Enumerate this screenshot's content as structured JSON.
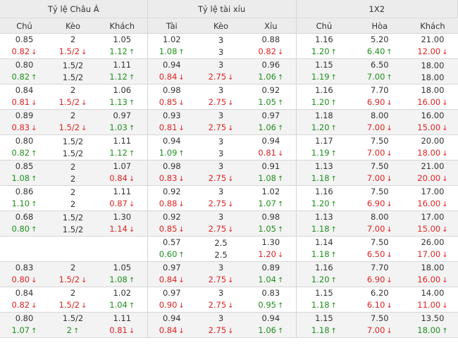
{
  "groups": [
    "Tỷ lệ Châu Á",
    "Tỷ lệ tài xỉu",
    "1X2"
  ],
  "columns": [
    "Chủ",
    "Kèo",
    "Khách",
    "Tài",
    "Kèo",
    "Xỉu",
    "Chủ",
    "Hòa",
    "Khách"
  ],
  "rows": [
    [
      [
        "0.85",
        ""
      ],
      [
        "0.82",
        "down"
      ],
      [
        "2",
        ""
      ],
      [
        "1.5/2",
        "down"
      ],
      [
        "1.05",
        ""
      ],
      [
        "1.12",
        "up"
      ],
      [
        "1.02",
        ""
      ],
      [
        "1.08",
        "up"
      ],
      [
        "3",
        ""
      ],
      [
        "3",
        ""
      ],
      [
        "0.88",
        ""
      ],
      [
        "0.82",
        "down"
      ],
      [
        "1.16",
        ""
      ],
      [
        "1.20",
        "up"
      ],
      [
        "5.20",
        ""
      ],
      [
        "6.40",
        "up"
      ],
      [
        "21.00",
        ""
      ],
      [
        "12.00",
        "down"
      ]
    ],
    [
      [
        "0.80",
        ""
      ],
      [
        "0.82",
        "up"
      ],
      [
        "1.5/2",
        ""
      ],
      [
        "1.5/2",
        ""
      ],
      [
        "1.11",
        ""
      ],
      [
        "1.12",
        "up"
      ],
      [
        "0.94",
        ""
      ],
      [
        "0.84",
        "down"
      ],
      [
        "3",
        ""
      ],
      [
        "2.75",
        "down"
      ],
      [
        "0.96",
        ""
      ],
      [
        "1.06",
        "up"
      ],
      [
        "1.15",
        ""
      ],
      [
        "1.19",
        "up"
      ],
      [
        "6.50",
        ""
      ],
      [
        "7.00",
        "up"
      ],
      [
        "18.00",
        ""
      ],
      [
        "18.00",
        ""
      ]
    ],
    [
      [
        "0.84",
        ""
      ],
      [
        "0.81",
        "down"
      ],
      [
        "2",
        ""
      ],
      [
        "1.5/2",
        "down"
      ],
      [
        "1.06",
        ""
      ],
      [
        "1.13",
        "up"
      ],
      [
        "0.98",
        ""
      ],
      [
        "0.85",
        "down"
      ],
      [
        "3",
        ""
      ],
      [
        "2.75",
        "down"
      ],
      [
        "0.92",
        ""
      ],
      [
        "1.05",
        "up"
      ],
      [
        "1.16",
        ""
      ],
      [
        "1.20",
        "up"
      ],
      [
        "7.70",
        ""
      ],
      [
        "6.90",
        "down"
      ],
      [
        "18.00",
        ""
      ],
      [
        "16.00",
        "down"
      ]
    ],
    [
      [
        "0.89",
        ""
      ],
      [
        "0.83",
        "down"
      ],
      [
        "2",
        ""
      ],
      [
        "1.5/2",
        "down"
      ],
      [
        "0.97",
        ""
      ],
      [
        "1.03",
        "up"
      ],
      [
        "0.93",
        ""
      ],
      [
        "0.81",
        "down"
      ],
      [
        "3",
        ""
      ],
      [
        "2.75",
        "down"
      ],
      [
        "0.97",
        ""
      ],
      [
        "1.06",
        "up"
      ],
      [
        "1.18",
        ""
      ],
      [
        "1.20",
        "up"
      ],
      [
        "8.00",
        ""
      ],
      [
        "7.00",
        "down"
      ],
      [
        "16.00",
        ""
      ],
      [
        "15.00",
        "down"
      ]
    ],
    [
      [
        "0.80",
        ""
      ],
      [
        "0.82",
        "up"
      ],
      [
        "1.5/2",
        ""
      ],
      [
        "1.5/2",
        ""
      ],
      [
        "1.11",
        ""
      ],
      [
        "1.12",
        "up"
      ],
      [
        "0.94",
        ""
      ],
      [
        "1.09",
        "up"
      ],
      [
        "3",
        ""
      ],
      [
        "3",
        ""
      ],
      [
        "0.94",
        ""
      ],
      [
        "0.81",
        "down"
      ],
      [
        "1.17",
        ""
      ],
      [
        "1.19",
        "up"
      ],
      [
        "7.50",
        ""
      ],
      [
        "7.00",
        "down"
      ],
      [
        "20.00",
        ""
      ],
      [
        "18.00",
        "down"
      ]
    ],
    [
      [
        "0.85",
        ""
      ],
      [
        "1.08",
        "up"
      ],
      [
        "2",
        ""
      ],
      [
        "2",
        ""
      ],
      [
        "1.07",
        ""
      ],
      [
        "0.84",
        "down"
      ],
      [
        "0.98",
        ""
      ],
      [
        "0.83",
        "down"
      ],
      [
        "3",
        ""
      ],
      [
        "2.75",
        "down"
      ],
      [
        "0.91",
        ""
      ],
      [
        "1.08",
        "up"
      ],
      [
        "1.13",
        ""
      ],
      [
        "1.18",
        "up"
      ],
      [
        "7.50",
        ""
      ],
      [
        "7.00",
        "down"
      ],
      [
        "21.00",
        ""
      ],
      [
        "20.00",
        "down"
      ]
    ],
    [
      [
        "0.86",
        ""
      ],
      [
        "1.10",
        "up"
      ],
      [
        "2",
        ""
      ],
      [
        "2",
        ""
      ],
      [
        "1.11",
        ""
      ],
      [
        "0.87",
        "down"
      ],
      [
        "0.92",
        ""
      ],
      [
        "0.88",
        "down"
      ],
      [
        "3",
        ""
      ],
      [
        "2.75",
        "down"
      ],
      [
        "1.02",
        ""
      ],
      [
        "1.07",
        "up"
      ],
      [
        "1.16",
        ""
      ],
      [
        "1.20",
        "up"
      ],
      [
        "7.50",
        ""
      ],
      [
        "6.90",
        "down"
      ],
      [
        "17.00",
        ""
      ],
      [
        "16.00",
        "down"
      ]
    ],
    [
      [
        "0.68",
        ""
      ],
      [
        "0.80",
        "up"
      ],
      [
        "1.5/2",
        ""
      ],
      [
        "1.5/2",
        ""
      ],
      [
        "1.30",
        ""
      ],
      [
        "1.14",
        "down"
      ],
      [
        "0.92",
        ""
      ],
      [
        "0.85",
        "down"
      ],
      [
        "3",
        ""
      ],
      [
        "2.75",
        "down"
      ],
      [
        "0.98",
        ""
      ],
      [
        "1.05",
        "up"
      ],
      [
        "1.13",
        ""
      ],
      [
        "1.18",
        "up"
      ],
      [
        "8.00",
        ""
      ],
      [
        "7.00",
        "down"
      ],
      [
        "17.00",
        ""
      ],
      [
        "15.00",
        "down"
      ]
    ],
    [
      [
        "",
        ""
      ],
      [
        "",
        ""
      ],
      [
        "",
        ""
      ],
      [
        "",
        ""
      ],
      [
        "",
        ""
      ],
      [
        "",
        ""
      ],
      [
        "0.57",
        ""
      ],
      [
        "0.60",
        "up"
      ],
      [
        "2.5",
        ""
      ],
      [
        "2.5",
        ""
      ],
      [
        "1.30",
        ""
      ],
      [
        "1.20",
        "down"
      ],
      [
        "1.14",
        ""
      ],
      [
        "1.18",
        "up"
      ],
      [
        "7.50",
        ""
      ],
      [
        "6.50",
        "down"
      ],
      [
        "26.00",
        ""
      ],
      [
        "17.00",
        "down"
      ]
    ],
    [
      [
        "0.83",
        ""
      ],
      [
        "0.80",
        "down"
      ],
      [
        "2",
        ""
      ],
      [
        "1.5/2",
        "down"
      ],
      [
        "1.05",
        ""
      ],
      [
        "1.08",
        "up"
      ],
      [
        "0.97",
        ""
      ],
      [
        "0.84",
        "down"
      ],
      [
        "3",
        ""
      ],
      [
        "2.75",
        "down"
      ],
      [
        "0.89",
        ""
      ],
      [
        "1.04",
        "up"
      ],
      [
        "1.16",
        ""
      ],
      [
        "1.20",
        "up"
      ],
      [
        "7.70",
        ""
      ],
      [
        "6.90",
        "down"
      ],
      [
        "18.00",
        ""
      ],
      [
        "16.00",
        "down"
      ]
    ],
    [
      [
        "0.84",
        ""
      ],
      [
        "0.82",
        "down"
      ],
      [
        "2",
        ""
      ],
      [
        "1.5/2",
        "down"
      ],
      [
        "1.02",
        ""
      ],
      [
        "1.04",
        "up"
      ],
      [
        "0.97",
        ""
      ],
      [
        "0.90",
        "down"
      ],
      [
        "3",
        ""
      ],
      [
        "2.75",
        "down"
      ],
      [
        "0.83",
        ""
      ],
      [
        "0.95",
        "up"
      ],
      [
        "1.15",
        ""
      ],
      [
        "1.18",
        "up"
      ],
      [
        "6.20",
        ""
      ],
      [
        "6.10",
        "down"
      ],
      [
        "14.00",
        ""
      ],
      [
        "11.00",
        "down"
      ]
    ],
    [
      [
        "0.80",
        ""
      ],
      [
        "1.07",
        "up"
      ],
      [
        "1.5/2",
        ""
      ],
      [
        "2",
        "up"
      ],
      [
        "1.11",
        ""
      ],
      [
        "0.81",
        "down"
      ],
      [
        "0.94",
        ""
      ],
      [
        "0.84",
        "down"
      ],
      [
        "3",
        ""
      ],
      [
        "2.75",
        "down"
      ],
      [
        "0.94",
        ""
      ],
      [
        "1.06",
        "up"
      ],
      [
        "1.15",
        ""
      ],
      [
        "1.18",
        "up"
      ],
      [
        "7.50",
        ""
      ],
      [
        "7.00",
        "down"
      ],
      [
        "13.50",
        ""
      ],
      [
        "18.00",
        "up"
      ]
    ]
  ]
}
